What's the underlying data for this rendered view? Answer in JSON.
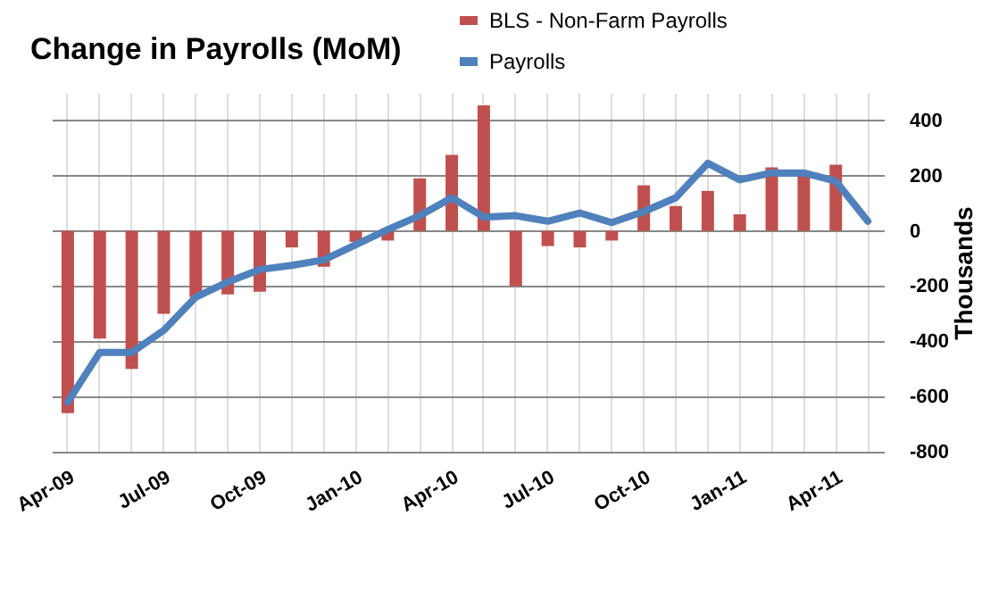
{
  "chart_data": {
    "type": "bar",
    "title": "Change in Payrolls (MoM)",
    "y2label": "Thousands",
    "categories": [
      "Apr-09",
      null,
      null,
      "Jul-09",
      null,
      null,
      "Oct-09",
      null,
      null,
      "Jan-10",
      null,
      null,
      "Apr-10",
      null,
      null,
      "Jul-10",
      null,
      null,
      "Oct-10",
      null,
      null,
      "Jan-11",
      null,
      null,
      "Apr-11",
      null
    ],
    "series": [
      {
        "name": "BLS - Non-Farm Payrolls",
        "axis": "y2",
        "color": "#c0504d",
        "values": [
          -660,
          -390,
          -500,
          -300,
          -240,
          -230,
          -220,
          -60,
          -130,
          -40,
          -35,
          190,
          275,
          455,
          -200,
          -55,
          -60,
          -35,
          165,
          90,
          145,
          60,
          230,
          215,
          240,
          null
        ]
      },
      {
        "name": "Payrolls",
        "type": "line",
        "axis": "y2",
        "color": "#4f81bd",
        "values": [
          -620,
          -440,
          -440,
          -360,
          -240,
          -185,
          -140,
          -125,
          -105,
          -50,
          5,
          55,
          120,
          50,
          55,
          35,
          65,
          30,
          70,
          120,
          245,
          185,
          210,
          210,
          180,
          35
        ]
      }
    ],
    "y2lim": [
      -800,
      500
    ],
    "y2ticks": [
      -800,
      -600,
      -400,
      -200,
      0,
      200,
      400
    ],
    "grid": true,
    "legend": "top right",
    "line_style": "solid"
  }
}
